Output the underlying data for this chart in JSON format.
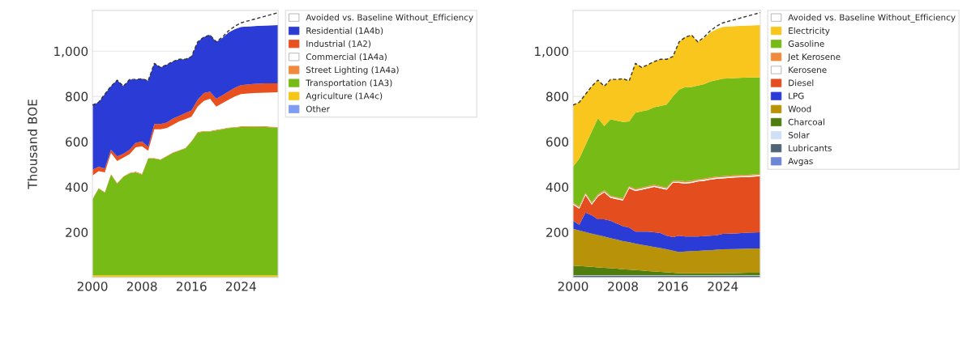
{
  "chart_data": [
    {
      "type": "area",
      "stacked": true,
      "ylabel": "Thousand BOE",
      "xlim": [
        2000,
        2030
      ],
      "ylim": [
        0,
        1180
      ],
      "xticks": [
        2000,
        2008,
        2016,
        2024
      ],
      "yticks": [
        {
          "value": 200,
          "label": "200"
        },
        {
          "value": 400,
          "label": "400"
        },
        {
          "value": 600,
          "label": "600"
        },
        {
          "value": 800,
          "label": "800"
        },
        {
          "value": 1000,
          "label": "1,000"
        }
      ],
      "grid": "y",
      "legend": "right",
      "x": [
        2000,
        2001,
        2002,
        2003,
        2004,
        2005,
        2006,
        2007,
        2008,
        2009,
        2010,
        2011,
        2012,
        2013,
        2014,
        2015,
        2016,
        2017,
        2018,
        2019,
        2020,
        2021,
        2022,
        2023,
        2024,
        2026,
        2028,
        2030
      ],
      "series": [
        {
          "name": "Other",
          "color": "#7f9cf0",
          "values": [
            2,
            2,
            2,
            2,
            2,
            2,
            2,
            2,
            2,
            2,
            2,
            2,
            2,
            2,
            2,
            2,
            2,
            2,
            2,
            2,
            2,
            2,
            2,
            2,
            2,
            2,
            2,
            2
          ]
        },
        {
          "name": "Agriculture (1A4c)",
          "color": "#f5c518",
          "values": [
            8,
            8,
            8,
            8,
            8,
            8,
            8,
            8,
            8,
            8,
            8,
            8,
            8,
            8,
            8,
            8,
            8,
            8,
            8,
            8,
            8,
            8,
            8,
            8,
            8,
            8,
            8,
            8
          ]
        },
        {
          "name": "Transportation (1A3)",
          "color": "#77bb16",
          "values": [
            335,
            383,
            365,
            445,
            405,
            435,
            450,
            455,
            445,
            515,
            515,
            510,
            525,
            540,
            550,
            560,
            590,
            630,
            635,
            635,
            640,
            645,
            650,
            652,
            655,
            656,
            655,
            652
          ]
        },
        {
          "name": "Street Lighting (1A4a)",
          "color": "#f08a3c",
          "values": [
            3,
            3,
            3,
            3,
            3,
            3,
            3,
            3,
            3,
            3,
            3,
            3,
            3,
            3,
            3,
            3,
            3,
            3,
            3,
            3,
            3,
            3,
            3,
            3,
            3,
            3,
            3,
            3
          ]
        },
        {
          "name": "Commercial (1A4a)",
          "color": "#ffffff",
          "values": [
            102,
            74,
            87,
            92,
            97,
            82,
            82,
            107,
            122,
            32,
            127,
            132,
            122,
            122,
            127,
            127,
            107,
            112,
            132,
            142,
            102,
            112,
            122,
            135,
            142,
            146,
            149,
            153
          ]
        },
        {
          "name": "Industrial (1A2)",
          "color": "#e8501f",
          "values": [
            26,
            20,
            17,
            15,
            20,
            17,
            20,
            20,
            21,
            17,
            23,
            23,
            24,
            27,
            24,
            26,
            28,
            30,
            35,
            31,
            35,
            35,
            37,
            38,
            40,
            40,
            41,
            40
          ]
        },
        {
          "name": "Residential (1A4b)",
          "color": "#2b3bd6",
          "values": [
            286,
            284,
            328,
            280,
            337,
            298,
            310,
            280,
            277,
            292,
            268,
            250,
            256,
            252,
            250,
            238,
            238,
            256,
            247,
            250,
            251,
            254,
            261,
            259,
            257,
            256,
            255,
            257
          ]
        },
        {
          "name": "Avoided vs. Baseline Without_Efficiency",
          "color": "#ffffff",
          "line_style": "dashed",
          "values": [
            0,
            0,
            0,
            0,
            0,
            0,
            0,
            0,
            0,
            0,
            0,
            0,
            0,
            0,
            0,
            0,
            0,
            0,
            0,
            0,
            0,
            3,
            7,
            13,
            18,
            29,
            42,
            55
          ]
        }
      ]
    },
    {
      "type": "area",
      "stacked": true,
      "xlim": [
        2000,
        2030
      ],
      "ylim": [
        0,
        1180
      ],
      "xticks": [
        2000,
        2008,
        2016,
        2024
      ],
      "yticks": [
        {
          "value": 200,
          "label": "200"
        },
        {
          "value": 400,
          "label": "400"
        },
        {
          "value": 600,
          "label": "600"
        },
        {
          "value": 800,
          "label": "800"
        },
        {
          "value": 1000,
          "label": "1,000"
        }
      ],
      "grid": "y",
      "legend": "right",
      "x": [
        2000,
        2001,
        2002,
        2003,
        2004,
        2005,
        2006,
        2007,
        2008,
        2009,
        2010,
        2011,
        2012,
        2013,
        2014,
        2015,
        2016,
        2017,
        2018,
        2019,
        2020,
        2021,
        2022,
        2023,
        2024,
        2026,
        2028,
        2030
      ],
      "series": [
        {
          "name": "Avgas",
          "color": "#6e86d6",
          "values": [
            2,
            2,
            2,
            2,
            2,
            2,
            2,
            2,
            2,
            2,
            2,
            2,
            2,
            2,
            2,
            2,
            2,
            2,
            2,
            2,
            2,
            2,
            2,
            2,
            2,
            2,
            2,
            2
          ]
        },
        {
          "name": "Lubricants",
          "color": "#4f6577",
          "values": [
            5,
            5,
            5,
            5,
            5,
            5,
            5,
            5,
            5,
            5,
            5,
            5,
            5,
            5,
            5,
            5,
            5,
            5,
            5,
            5,
            5,
            5,
            5,
            5,
            5,
            5,
            5,
            5
          ]
        },
        {
          "name": "Solar",
          "color": "#cfe0f5",
          "values": [
            3,
            3,
            3,
            3,
            3,
            3,
            3,
            3,
            3,
            3,
            3,
            3,
            3,
            3,
            3,
            3,
            3,
            3,
            3,
            3,
            3,
            3,
            3,
            3,
            3,
            3,
            3,
            3
          ]
        },
        {
          "name": "Charcoal",
          "color": "#4f7d10",
          "values": [
            43,
            41,
            39,
            37,
            35,
            33,
            31,
            29,
            27,
            25,
            23,
            21,
            19,
            17,
            15,
            13,
            11,
            9,
            9,
            9,
            9,
            9,
            9,
            9,
            10,
            10,
            11,
            11
          ]
        },
        {
          "name": "Wood",
          "color": "#b8930a",
          "values": [
            162,
            157,
            152,
            147,
            143,
            138,
            133,
            129,
            124,
            121,
            117,
            114,
            111,
            108,
            105,
            102,
            98,
            94,
            96,
            98,
            99,
            101,
            102,
            104,
            105,
            106,
            107,
            108
          ]
        },
        {
          "name": "LPG",
          "color": "#2b3bd6",
          "values": [
            36,
            25,
            86,
            81,
            69,
            76,
            77,
            71,
            66,
            65,
            53,
            58,
            63,
            65,
            67,
            60,
            60,
            72,
            66,
            64,
            63,
            63,
            64,
            64,
            68,
            69,
            70,
            71
          ]
        },
        {
          "name": "Diesel",
          "color": "#e44d1e",
          "values": [
            71,
            71,
            77,
            47,
            101,
            119,
            101,
            107,
            113,
            173,
            179,
            185,
            191,
            200,
            197,
            203,
            239,
            233,
            234,
            237,
            243,
            244,
            247,
            249,
            245,
            247,
            246,
            248
          ]
        },
        {
          "name": "Kerosene",
          "color": "#ffffff",
          "values": [
            5,
            5,
            5,
            5,
            5,
            5,
            5,
            5,
            5,
            5,
            5,
            5,
            5,
            5,
            5,
            5,
            5,
            5,
            5,
            5,
            5,
            5,
            5,
            5,
            5,
            5,
            5,
            5
          ]
        },
        {
          "name": "Jet Kerosene",
          "color": "#f08a3c",
          "values": [
            5,
            5,
            5,
            5,
            5,
            5,
            5,
            5,
            5,
            5,
            5,
            5,
            5,
            5,
            5,
            5,
            5,
            5,
            5,
            5,
            5,
            5,
            5,
            5,
            5,
            5,
            5,
            5
          ]
        },
        {
          "name": "Gasoline",
          "color": "#77bb16",
          "values": [
            158,
            211,
            211,
            313,
            336,
            283,
            337,
            337,
            337,
            286,
            336,
            336,
            336,
            342,
            354,
            366,
            372,
            402,
            417,
            414,
            414,
            417,
            424,
            426,
            430,
            429,
            430,
            426
          ]
        },
        {
          "name": "Electricity",
          "color": "#f8c61c",
          "values": [
            272,
            249,
            225,
            200,
            168,
            176,
            176,
            182,
            191,
            179,
            218,
            194,
            200,
            202,
            206,
            200,
            176,
            211,
            220,
            229,
            193,
            205,
            217,
            225,
            229,
            230,
            229,
            231
          ]
        },
        {
          "name": "Avoided vs. Baseline Without_Efficiency",
          "color": "#ffffff",
          "line_style": "dashed",
          "values": [
            0,
            0,
            0,
            0,
            0,
            0,
            0,
            0,
            0,
            0,
            0,
            0,
            0,
            0,
            0,
            0,
            0,
            0,
            0,
            0,
            0,
            3,
            7,
            13,
            18,
            29,
            42,
            55
          ]
        }
      ]
    }
  ]
}
